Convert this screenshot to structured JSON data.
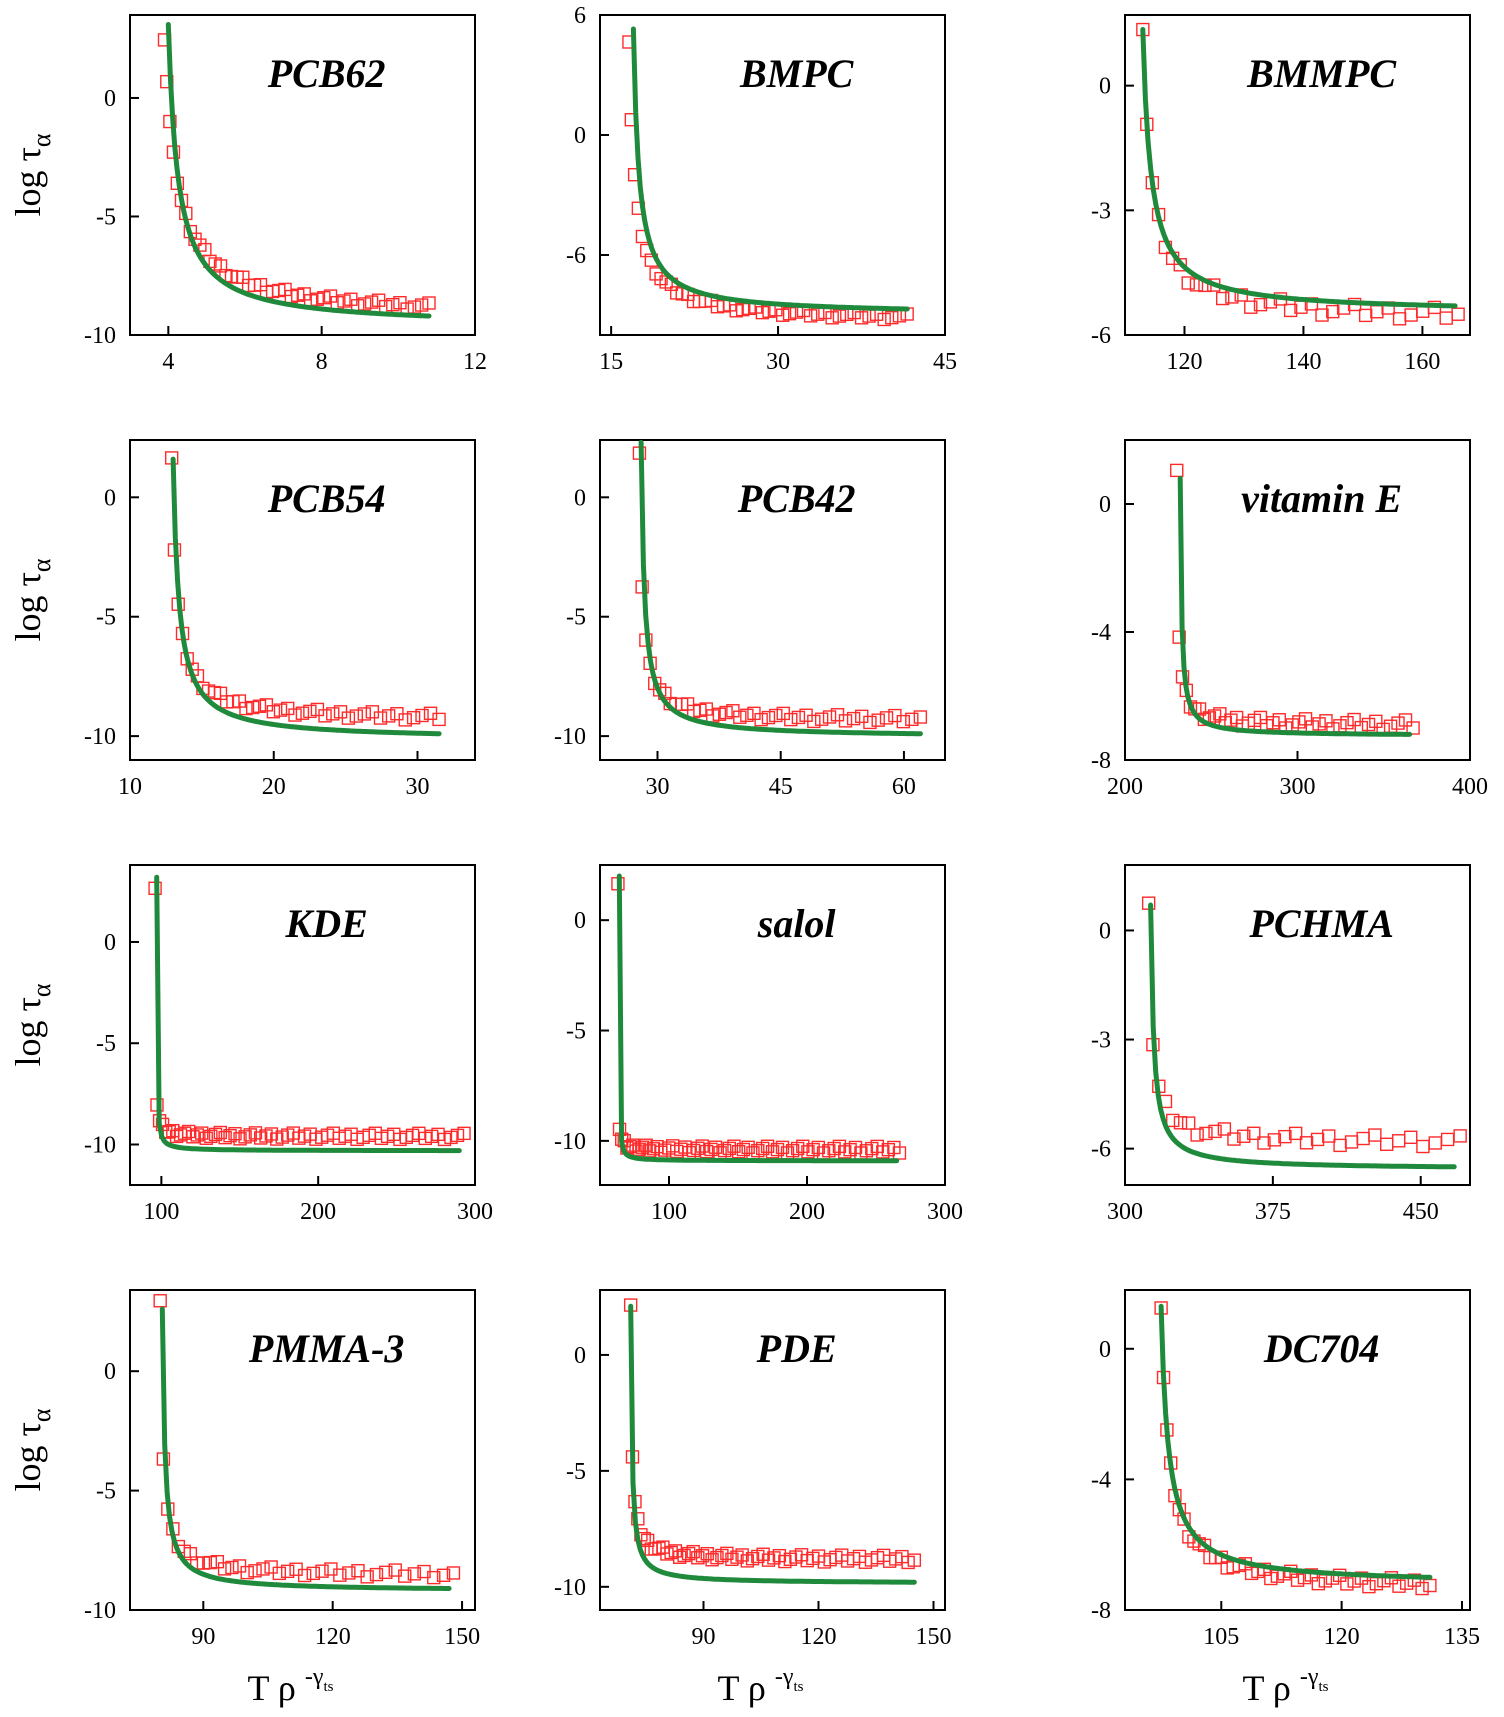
{
  "figure": {
    "ylabel_main": "log τ",
    "ylabel_sub": "α",
    "xlabel_main": "T ρ",
    "xlabel_sup": "-γ",
    "xlabel_supsub": "ts",
    "colors": {
      "data": "#ff2a2a",
      "fit": "#1f8a3c",
      "axes": "#000000"
    }
  },
  "chart_data": [
    {
      "type": "scatter",
      "title": "PCB62",
      "xlim": [
        3,
        12
      ],
      "ylim": [
        -10,
        3.5
      ],
      "xticks": [
        4,
        8,
        12
      ],
      "yticks": [
        0,
        -5,
        -10
      ],
      "fit": {
        "x0": 4.0,
        "y0": 3.1,
        "x1": 10.8,
        "y1": -9.2,
        "k": 0.25
      },
      "data": {
        "x0": 3.9,
        "y0": 2.6,
        "x1": 10.8,
        "y1": -8.8,
        "k": 0.32,
        "n": 46
      }
    },
    {
      "type": "scatter",
      "title": "BMPC",
      "xlim": [
        14,
        45
      ],
      "ylim": [
        -10,
        6
      ],
      "xticks": [
        15,
        30,
        45
      ],
      "yticks": [
        6,
        0,
        -6
      ],
      "fit": {
        "x0": 17.0,
        "y0": 5.3,
        "x1": 41.6,
        "y1": -8.7,
        "k": 0.5
      },
      "data": {
        "x0": 16.6,
        "y0": 4.8,
        "x1": 41.6,
        "y1": -9.1,
        "k": 0.55,
        "n": 46
      }
    },
    {
      "type": "scatter",
      "title": "BMMPC",
      "xlim": [
        110,
        168
      ],
      "ylim": [
        -6,
        1.7
      ],
      "xticks": [
        120,
        140,
        160
      ],
      "yticks": [
        0,
        -3,
        -6
      ],
      "fit": {
        "x0": 113,
        "y0": 1.35,
        "x1": 165.5,
        "y1": -5.3,
        "k": 1.35
      },
      "data": {
        "x0": 113,
        "y0": 1.5,
        "x1": 166,
        "y1": -5.5,
        "k": 1.35,
        "n": 34
      }
    },
    {
      "type": "scatter",
      "title": "PCB54",
      "xlim": [
        10,
        34
      ],
      "ylim": [
        -11,
        2.4
      ],
      "xticks": [
        10,
        20,
        30
      ],
      "yticks": [
        0,
        -5,
        -10
      ],
      "fit": {
        "x0": 13.0,
        "y0": 1.6,
        "x1": 31.5,
        "y1": -9.9,
        "k": 0.4
      },
      "data": {
        "x0": 12.9,
        "y0": 1.8,
        "x1": 31.5,
        "y1": -9.2,
        "k": 0.35,
        "n": 40
      }
    },
    {
      "type": "scatter",
      "title": "PCB42",
      "xlim": [
        23,
        65
      ],
      "ylim": [
        -11,
        2.4
      ],
      "xticks": [
        30,
        45,
        60
      ],
      "yticks": [
        0,
        -5,
        -10
      ],
      "fit": {
        "x0": 28.0,
        "y0": 2.3,
        "x1": 62,
        "y1": -9.9,
        "k": 0.4
      },
      "data": {
        "x0": 27.8,
        "y0": 2.0,
        "x1": 62,
        "y1": -9.3,
        "k": 0.33,
        "n": 42
      }
    },
    {
      "type": "scatter",
      "title": "vitamin E",
      "xlim": [
        200,
        400
      ],
      "ylim": [
        -8,
        2
      ],
      "xticks": [
        200,
        300,
        400
      ],
      "yticks": [
        0,
        -4,
        -8
      ],
      "fit": {
        "x0": 232,
        "y0": 0.8,
        "x1": 365,
        "y1": -7.2,
        "k": 0.8
      },
      "data": {
        "x0": 230,
        "y0": 1.2,
        "x1": 367,
        "y1": -6.9,
        "k": 0.75,
        "n": 40
      }
    },
    {
      "type": "scatter",
      "title": "KDE",
      "xlim": [
        80,
        300
      ],
      "ylim": [
        -12,
        3.8
      ],
      "xticks": [
        100,
        200,
        300
      ],
      "yticks": [
        0,
        -5,
        -10
      ],
      "fit": {
        "x0": 97,
        "y0": 3.2,
        "x1": 290,
        "y1": -10.3,
        "k": 0.18
      },
      "data": {
        "x0": 96,
        "y0": 2.8,
        "x1": 293,
        "y1": -9.6,
        "k": 0.18,
        "n": 60
      }
    },
    {
      "type": "scatter",
      "title": "salol",
      "xlim": [
        50,
        300
      ],
      "ylim": [
        -12,
        2.5
      ],
      "xticks": [
        100,
        200,
        300
      ],
      "yticks": [
        0,
        -5,
        -10
      ],
      "fit": {
        "x0": 64,
        "y0": 2.0,
        "x1": 265,
        "y1": -10.9,
        "k": 0.12
      },
      "data": {
        "x0": 63,
        "y0": 1.8,
        "x1": 267,
        "y1": -10.4,
        "k": 0.1,
        "n": 64
      }
    },
    {
      "type": "scatter",
      "title": "PCHMA",
      "xlim": [
        300,
        475
      ],
      "ylim": [
        -7,
        1.8
      ],
      "xticks": [
        300,
        375,
        450
      ],
      "yticks": [
        0,
        -3,
        -6
      ],
      "fit": {
        "x0": 313,
        "y0": 0.7,
        "x1": 467,
        "y1": -6.5,
        "k": 1.5
      },
      "data": {
        "x0": 312,
        "y0": 0.9,
        "x1": 470,
        "y1": -5.8,
        "k": 1.5,
        "n": 32
      }
    },
    {
      "type": "scatter",
      "title": "PMMA-3",
      "xlim": [
        73,
        153
      ],
      "ylim": [
        -10,
        3.4
      ],
      "xticks": [
        90,
        120,
        150
      ],
      "yticks": [
        0,
        -5,
        -10
      ],
      "fit": {
        "x0": 80.5,
        "y0": 2.6,
        "x1": 147,
        "y1": -9.1,
        "k": 0.6
      },
      "data": {
        "x0": 80,
        "y0": 3.1,
        "x1": 148,
        "y1": -8.5,
        "k": 0.55,
        "n": 38
      }
    },
    {
      "type": "scatter",
      "title": "PDE",
      "xlim": [
        63,
        153
      ],
      "ylim": [
        -11,
        2.8
      ],
      "xticks": [
        90,
        120,
        150
      ],
      "yticks": [
        0,
        -5,
        -10
      ],
      "fit": {
        "x0": 71,
        "y0": 2.1,
        "x1": 145,
        "y1": -9.8,
        "k": 0.35
      },
      "data": {
        "x0": 71,
        "y0": 2.3,
        "x1": 145,
        "y1": -8.8,
        "k": 0.32,
        "n": 58
      }
    },
    {
      "type": "scatter",
      "title": "DC704",
      "xlim": [
        93,
        136
      ],
      "ylim": [
        -8,
        1.8
      ],
      "xticks": [
        105,
        120,
        135
      ],
      "yticks": [
        0,
        -4,
        -8
      ],
      "fit": {
        "x0": 97.5,
        "y0": 1.3,
        "x1": 131,
        "y1": -7.0,
        "k": 0.9
      },
      "data": {
        "x0": 97.5,
        "y0": 1.4,
        "x1": 131,
        "y1": -7.2,
        "k": 0.9,
        "n": 44
      }
    }
  ]
}
